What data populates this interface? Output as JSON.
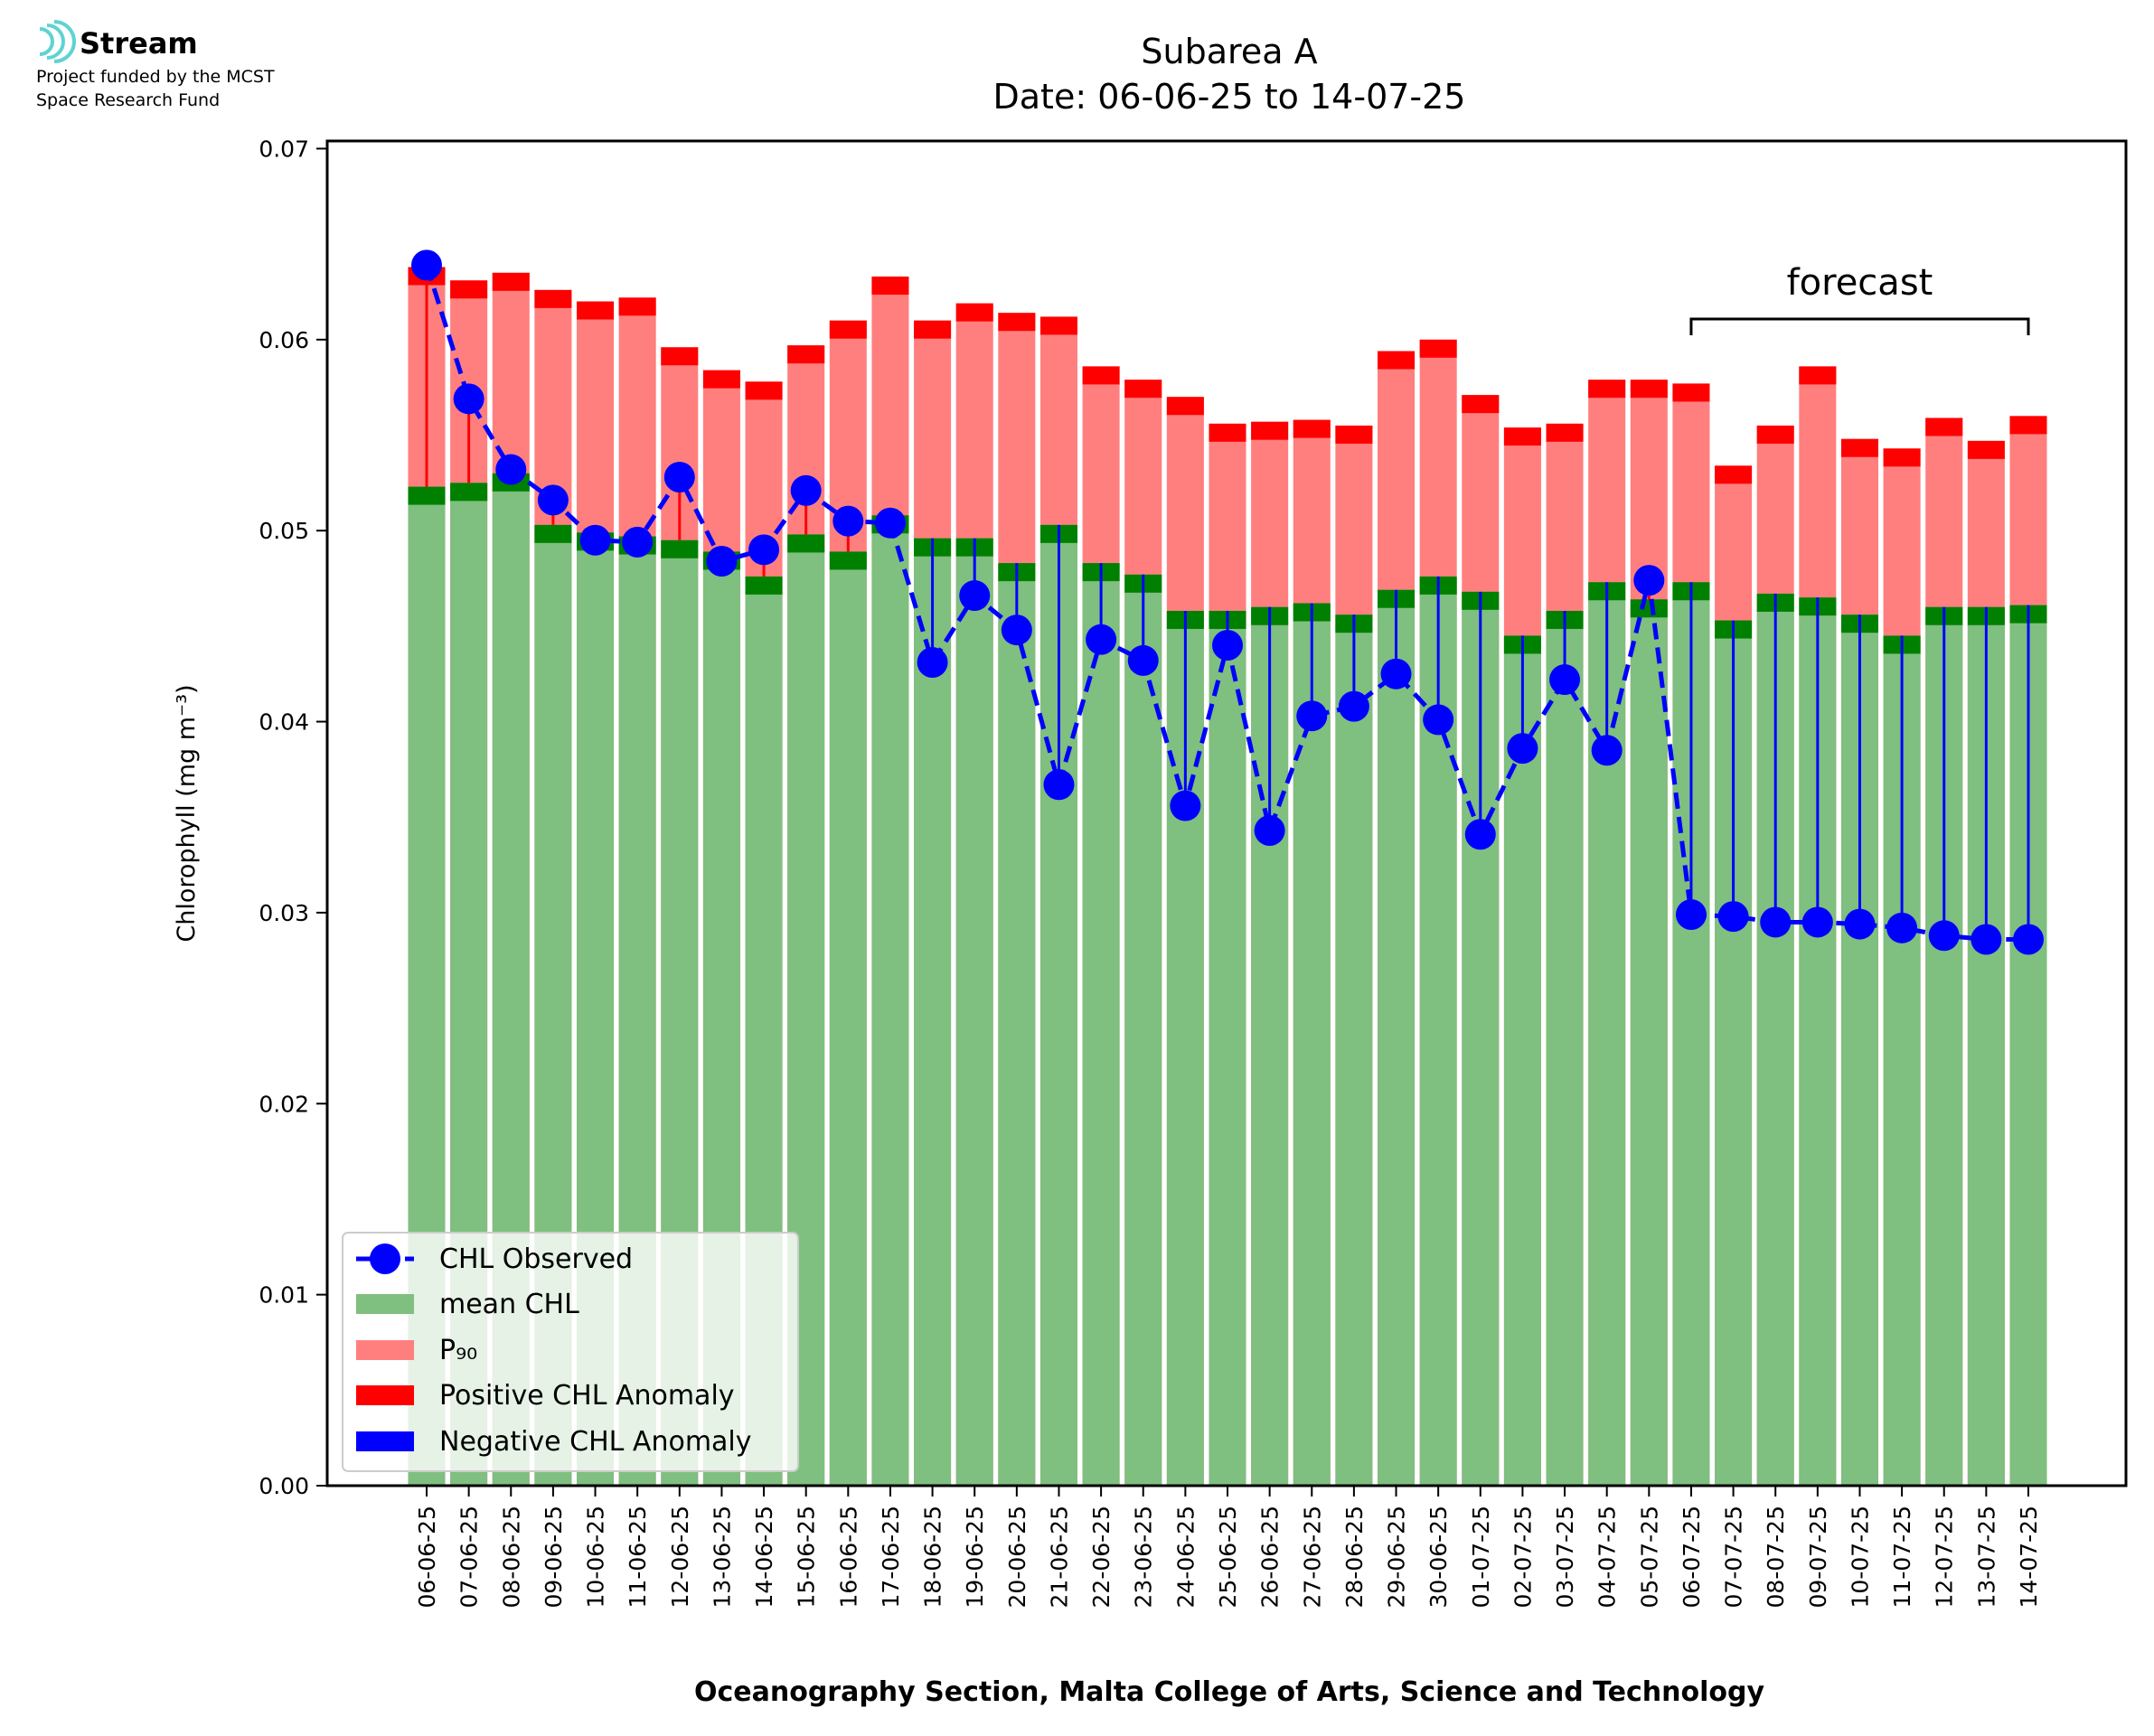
{
  "logo": {
    "name": "Stream",
    "lines": [
      "Project funded by the MCST",
      "Space Research Fund"
    ]
  },
  "chart_data": {
    "type": "bar",
    "title": "Subarea A",
    "subtitle": "Date: 06-06-25 to 14-07-25",
    "ylabel": "Chlorophyll (mg m⁻³)",
    "xlabel": "Oceanography Section, Malta College of Arts, Science and Technology",
    "categories": [
      "06-06-25",
      "07-06-25",
      "08-06-25",
      "09-06-25",
      "10-06-25",
      "11-06-25",
      "12-06-25",
      "13-06-25",
      "14-06-25",
      "15-06-25",
      "16-06-25",
      "17-06-25",
      "18-06-25",
      "19-06-25",
      "20-06-25",
      "21-06-25",
      "22-06-25",
      "23-06-25",
      "24-06-25",
      "25-06-25",
      "26-06-25",
      "27-06-25",
      "28-06-25",
      "29-06-25",
      "30-06-25",
      "01-07-25",
      "02-07-25",
      "03-07-25",
      "04-07-25",
      "05-07-25",
      "06-07-25",
      "07-07-25",
      "08-07-25",
      "09-07-25",
      "10-07-25",
      "11-07-25",
      "12-07-25",
      "13-07-25",
      "14-07-25"
    ],
    "series": [
      {
        "name": "CHL Observed",
        "color": "#0000ff",
        "values": [
          0.0639,
          0.0569,
          0.0532,
          0.0516,
          0.0495,
          0.0494,
          0.0528,
          0.0484,
          0.049,
          0.0521,
          0.0505,
          0.0504,
          0.0431,
          0.0466,
          0.0448,
          0.0367,
          0.0443,
          0.0432,
          0.0356,
          0.044,
          0.0343,
          0.0403,
          0.0408,
          0.0425,
          0.0401,
          0.0341,
          0.0386,
          0.0422,
          0.0385,
          0.0474,
          0.0299,
          0.0298,
          0.0295,
          0.0295,
          0.0294,
          0.0292,
          0.0288,
          0.0286,
          0.0286
        ]
      },
      {
        "name": "mean CHL",
        "color": "#7fbf7f",
        "band_color": "#008000",
        "values": [
          0.0523,
          0.0525,
          0.053,
          0.0503,
          0.0499,
          0.0497,
          0.0495,
          0.0489,
          0.0476,
          0.0498,
          0.0489,
          0.0508,
          0.0496,
          0.0496,
          0.0483,
          0.0503,
          0.0483,
          0.0477,
          0.0458,
          0.0458,
          0.046,
          0.0462,
          0.0456,
          0.0469,
          0.0476,
          0.0468,
          0.0445,
          0.0458,
          0.0473,
          0.0464,
          0.0473,
          0.0453,
          0.0467,
          0.0465,
          0.0456,
          0.0445,
          0.046,
          0.046,
          0.0461
        ]
      },
      {
        "name": "P₉₀",
        "color": "#ff7f7f",
        "band_color": "#ff0000",
        "values": [
          0.0638,
          0.0631,
          0.0635,
          0.0626,
          0.062,
          0.0622,
          0.0596,
          0.0584,
          0.0578,
          0.0597,
          0.061,
          0.0633,
          0.061,
          0.0619,
          0.0614,
          0.0612,
          0.0586,
          0.0579,
          0.057,
          0.0556,
          0.0557,
          0.0558,
          0.0555,
          0.0594,
          0.06,
          0.0571,
          0.0554,
          0.0556,
          0.0579,
          0.0579,
          0.0577,
          0.0534,
          0.0555,
          0.0586,
          0.0548,
          0.0543,
          0.0559,
          0.0547,
          0.056
        ]
      }
    ],
    "anomaly_legend": [
      {
        "name": "Positive CHL Anomaly",
        "color": "#ff0000"
      },
      {
        "name": "Negative CHL Anomaly",
        "color": "#0000ff"
      }
    ],
    "annotation": {
      "text": "forecast",
      "from": 30,
      "to": 38
    },
    "ylim": [
      0,
      0.0704
    ],
    "yticks": [
      {
        "value": 0,
        "label": "0.00"
      },
      {
        "value": 0.01,
        "label": "0.01"
      },
      {
        "value": 0.02,
        "label": "0.02"
      },
      {
        "value": 0.03,
        "label": "0.03"
      },
      {
        "value": 0.04,
        "label": "0.04"
      },
      {
        "value": 0.05,
        "label": "0.05"
      },
      {
        "value": 0.06,
        "label": "0.06"
      },
      {
        "value": 0.07,
        "label": "0.07"
      }
    ],
    "legend": "lower left",
    "grid": false
  }
}
